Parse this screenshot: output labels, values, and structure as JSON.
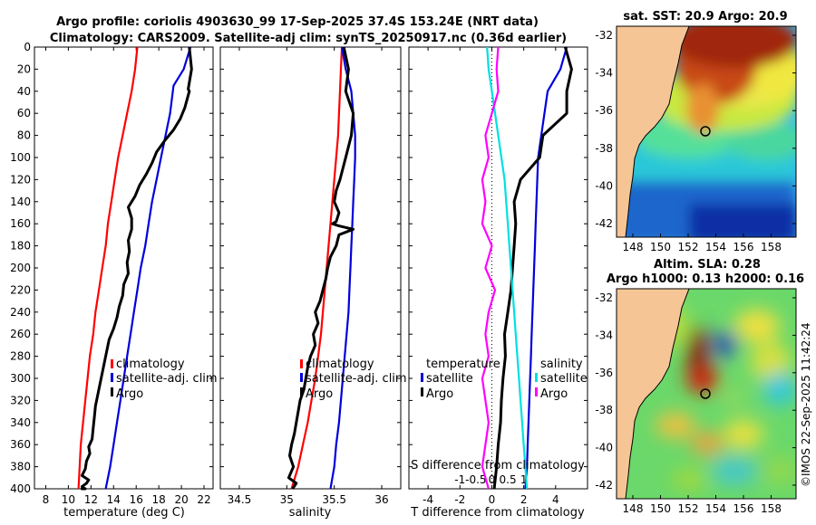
{
  "header": {
    "title_line1": "Argo profile: coriolis 4903630_99 17-Sep-2025 37.4S 153.24E (NRT data)",
    "title_line2": "Climatology: CARS2009. Satellite-adj clim: synTS_20250917.nc (0.36d earlier)"
  },
  "depth_axis": {
    "ylim": [
      0,
      400
    ],
    "ticks": [
      0,
      20,
      40,
      60,
      80,
      100,
      120,
      140,
      160,
      180,
      200,
      220,
      240,
      260,
      280,
      300,
      320,
      340,
      360,
      380,
      400
    ]
  },
  "chart_data": [
    {
      "type": "line",
      "name": "temperature",
      "xlabel": "temperature (deg C)",
      "ylabel": "depth",
      "xlim": [
        7,
        22.8
      ],
      "ylim": [
        0,
        400
      ],
      "xticks": [
        8,
        10,
        12,
        14,
        16,
        18,
        20,
        22
      ],
      "legend": [
        "climatology",
        "satellite-adj. clim",
        "Argo"
      ],
      "series": [
        {
          "name": "climatology",
          "color": "#ff0000",
          "x": [
            16.1,
            15.9,
            15.6,
            15.2,
            14.8,
            14.4,
            14.1,
            13.8,
            13.5,
            13.3,
            13.0,
            12.7,
            12.4,
            12.2,
            11.9,
            11.7,
            11.5,
            11.3,
            11.1,
            10.9
          ],
          "y": [
            0,
            20,
            40,
            60,
            80,
            100,
            120,
            140,
            160,
            180,
            200,
            220,
            240,
            260,
            280,
            300,
            320,
            340,
            360,
            400
          ]
        },
        {
          "name": "satellite-adj. clim",
          "color": "#0000dd",
          "x": [
            20.8,
            20.2,
            19.3,
            19.0,
            18.6,
            18.2,
            17.8,
            17.4,
            17.1,
            16.8,
            16.4,
            16.1,
            15.8,
            15.5,
            15.2,
            14.9,
            14.6,
            14.3,
            14.0,
            13.7,
            13.3
          ],
          "y": [
            0,
            20,
            35,
            60,
            80,
            100,
            120,
            140,
            160,
            180,
            200,
            220,
            240,
            260,
            280,
            300,
            320,
            340,
            360,
            380,
            400
          ]
        },
        {
          "name": "Argo",
          "color": "#000000",
          "x": [
            20.7,
            20.9,
            20.6,
            20.7,
            20.3,
            19.9,
            19.3,
            18.5,
            17.8,
            17.4,
            16.9,
            16.3,
            15.9,
            15.3,
            15.6,
            15.6,
            15.3,
            15.4,
            15.2,
            15.3,
            14.9,
            14.8,
            14.5,
            14.3,
            14.0,
            13.6,
            13.4,
            13.2,
            13.0,
            12.8,
            12.6,
            12.4,
            12.3,
            12.2,
            12.1,
            11.8,
            11.9,
            11.6,
            11.5,
            11.2,
            11.8,
            11.6,
            11.2,
            11.3,
            11.5,
            11.2,
            11.4
          ],
          "y": [
            0,
            20,
            38,
            40,
            55,
            65,
            75,
            85,
            95,
            105,
            115,
            125,
            135,
            145,
            155,
            165,
            175,
            185,
            195,
            205,
            215,
            225,
            235,
            245,
            255,
            265,
            275,
            285,
            295,
            305,
            315,
            325,
            335,
            345,
            355,
            362,
            368,
            375,
            382,
            388,
            392,
            395,
            398,
            399,
            400,
            400,
            400
          ]
        }
      ]
    },
    {
      "type": "line",
      "name": "salinity",
      "xlabel": "salinity",
      "ylabel": "depth",
      "xlim": [
        34.3,
        36.2
      ],
      "ylim": [
        0,
        400
      ],
      "xticks": [
        34.5,
        35,
        35.5,
        36
      ],
      "xticklabels": [
        "34.5",
        "35",
        "35.5",
        "36"
      ],
      "legend": [
        "climatology",
        "satellite-adj. clim",
        "Argo"
      ],
      "series": [
        {
          "name": "climatology",
          "color": "#ff0000",
          "x": [
            35.58,
            35.57,
            35.56,
            35.55,
            35.54,
            35.52,
            35.5,
            35.48,
            35.46,
            35.44,
            35.42,
            35.4,
            35.38,
            35.36,
            35.33,
            35.3,
            35.26,
            35.22,
            35.17,
            35.12,
            35.05
          ],
          "y": [
            0,
            20,
            40,
            60,
            80,
            100,
            120,
            140,
            160,
            180,
            200,
            220,
            240,
            260,
            280,
            300,
            320,
            340,
            360,
            380,
            400
          ]
        },
        {
          "name": "satellite-adj. clim",
          "color": "#0000dd",
          "x": [
            35.58,
            35.62,
            35.68,
            35.7,
            35.72,
            35.72,
            35.71,
            35.7,
            35.69,
            35.68,
            35.67,
            35.66,
            35.65,
            35.63,
            35.61,
            35.59,
            35.57,
            35.55,
            35.52,
            35.5,
            35.46
          ],
          "y": [
            0,
            20,
            40,
            60,
            80,
            100,
            120,
            140,
            160,
            180,
            200,
            220,
            240,
            260,
            280,
            300,
            320,
            340,
            360,
            380,
            400
          ]
        },
        {
          "name": "Argo",
          "color": "#000000",
          "x": [
            35.6,
            35.65,
            35.62,
            35.7,
            35.68,
            35.62,
            35.56,
            35.52,
            35.5,
            35.55,
            35.52,
            35.48,
            35.55,
            35.7,
            35.55,
            35.52,
            35.46,
            35.43,
            35.41,
            35.38,
            35.35,
            35.3,
            35.33,
            35.28,
            35.3,
            35.25,
            35.22,
            35.2,
            35.18,
            35.14,
            35.12,
            35.1,
            35.08,
            35.05,
            35.03,
            35.07,
            35.02,
            35.1,
            35.06
          ],
          "y": [
            0,
            20,
            40,
            60,
            80,
            100,
            120,
            130,
            140,
            150,
            158,
            160,
            162,
            165,
            170,
            180,
            190,
            200,
            210,
            220,
            230,
            240,
            250,
            260,
            270,
            280,
            290,
            300,
            310,
            320,
            330,
            340,
            350,
            360,
            370,
            380,
            390,
            395,
            400
          ]
        }
      ]
    },
    {
      "type": "line",
      "name": "difference",
      "xlabel": "T difference from climatology",
      "ylabel": "depth",
      "xlim": [
        -5.2,
        6
      ],
      "ylim": [
        0,
        400
      ],
      "xticks": [
        -4,
        -2,
        0,
        2,
        4
      ],
      "xticklabels": [
        "-4",
        "-2",
        "0",
        "2",
        "4"
      ],
      "top_xlabel": "S difference from climatology",
      "top_xticklabels": [
        "-1",
        "-0.5",
        "0",
        "0.5",
        "1"
      ],
      "legend_temperature": {
        "heading": "temperature",
        "items": [
          "satellite",
          "Argo"
        ]
      },
      "legend_salinity": {
        "heading": "salinity",
        "items": [
          "satellite",
          "Argo"
        ]
      },
      "series": [
        {
          "name": "T satellite",
          "color": "#0000dd",
          "x": [
            4.7,
            4.3,
            3.5,
            3.3,
            3.1,
            2.9,
            2.85,
            2.8,
            2.75,
            2.7,
            2.65,
            2.6,
            2.55,
            2.5,
            2.45,
            2.4,
            2.35,
            2.3,
            2.25,
            2.2,
            2.1
          ],
          "y": [
            0,
            20,
            40,
            60,
            80,
            100,
            120,
            140,
            160,
            180,
            200,
            220,
            240,
            260,
            280,
            300,
            320,
            340,
            360,
            380,
            400
          ]
        },
        {
          "name": "T Argo",
          "color": "#000000",
          "x": [
            4.6,
            5.0,
            4.7,
            4.7,
            3.2,
            3.0,
            1.8,
            1.4,
            1.5,
            1.4,
            1.3,
            1.2,
            1.0,
            0.8,
            0.85,
            0.7,
            0.6,
            0.55,
            0.4,
            0.3,
            0.15
          ],
          "y": [
            0,
            20,
            40,
            60,
            80,
            100,
            120,
            140,
            160,
            180,
            200,
            220,
            240,
            260,
            280,
            300,
            320,
            340,
            360,
            380,
            400
          ]
        },
        {
          "name": "S satellite",
          "color": "#00e0e0",
          "x": [
            -0.15,
            -0.1,
            0.0,
            0.1,
            0.2,
            0.3,
            0.4,
            0.45,
            0.5,
            0.55,
            0.6,
            0.65,
            0.7,
            0.75,
            0.8,
            0.85,
            0.9,
            0.95,
            1.0,
            1.05,
            1.1
          ],
          "y": [
            0,
            20,
            40,
            60,
            80,
            100,
            120,
            140,
            160,
            180,
            200,
            220,
            240,
            260,
            280,
            300,
            320,
            340,
            360,
            380,
            400
          ]
        },
        {
          "name": "S Argo",
          "color": "#ff00ff",
          "x": [
            0.2,
            0.15,
            0.2,
            0.0,
            -0.2,
            -0.1,
            -0.3,
            -0.2,
            -0.3,
            0.0,
            -0.2,
            0.1,
            -0.1,
            -0.2,
            -0.1,
            -0.3,
            -0.2,
            -0.1,
            -0.2,
            -0.3,
            -0.1
          ],
          "y": [
            0,
            20,
            40,
            60,
            80,
            100,
            120,
            140,
            160,
            180,
            200,
            220,
            240,
            260,
            280,
            300,
            320,
            340,
            360,
            380,
            400
          ]
        }
      ]
    }
  ],
  "maps": {
    "sst": {
      "title": "sat. SST: 20.9 Argo: 20.9",
      "yticks": [
        "-32",
        "-34",
        "-36",
        "-38",
        "-40",
        "-42"
      ],
      "xticks": [
        "148",
        "150",
        "152",
        "154",
        "156",
        "158"
      ]
    },
    "sla": {
      "title_line1": "Altim. SLA: 0.28",
      "title_line2": "Argo h1000: 0.13 h2000: 0.16",
      "yticks": [
        "-32",
        "-34",
        "-36",
        "-38",
        "-40",
        "-42"
      ],
      "xticks": [
        "148",
        "150",
        "152",
        "154",
        "156",
        "158"
      ]
    }
  },
  "credit": "©IMOS 22-Sep-2025 11:42:24"
}
